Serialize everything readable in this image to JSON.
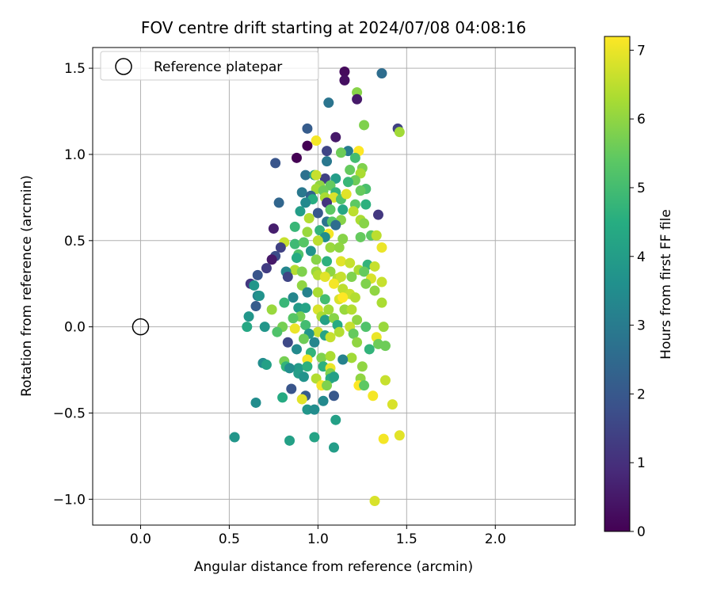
{
  "chart_data": {
    "type": "scatter",
    "title": "FOV centre drift starting at 2024/07/08 04:08:16",
    "xlabel": "Angular distance from reference (arcmin)",
    "ylabel": "Rotation from reference (arcmin)",
    "xlim": [
      -0.27,
      2.45
    ],
    "ylim": [
      -1.15,
      1.62
    ],
    "xticks": [
      0.0,
      0.5,
      1.0,
      1.5,
      2.0
    ],
    "xtick_labels": [
      "0.0",
      "0.5",
      "1.0",
      "1.5",
      "2.0"
    ],
    "yticks": [
      -1.0,
      -0.5,
      0.0,
      0.5,
      1.0,
      1.5
    ],
    "ytick_labels": [
      "−1.0",
      "−0.5",
      "0.0",
      "0.5",
      "1.0",
      "1.5"
    ],
    "grid": true,
    "legend": {
      "placement": "top-left",
      "entries": [
        {
          "label": "Reference platepar",
          "marker": "open-circle"
        }
      ]
    },
    "reference_point": {
      "x": 0.0,
      "y": 0.0
    },
    "colorbar": {
      "label": "Hours from first FF file",
      "colormap": "viridis",
      "range": [
        0,
        7.2
      ],
      "ticks": [
        0,
        1,
        2,
        3,
        4,
        5,
        6,
        7
      ],
      "tick_labels": [
        "0",
        "1",
        "2",
        "3",
        "4",
        "5",
        "6",
        "7"
      ]
    },
    "points": [
      [
        1.15,
        1.48,
        0.2
      ],
      [
        1.15,
        1.43,
        0.3
      ],
      [
        1.36,
        1.47,
        2.6
      ],
      [
        1.22,
        1.36,
        5.9
      ],
      [
        1.22,
        1.32,
        0.5
      ],
      [
        1.06,
        1.3,
        2.8
      ],
      [
        1.26,
        1.17,
        5.8
      ],
      [
        0.94,
        1.15,
        2.1
      ],
      [
        1.45,
        1.15,
        1.4
      ],
      [
        1.46,
        1.13,
        6.2
      ],
      [
        1.1,
        1.1,
        0.5
      ],
      [
        0.99,
        1.08,
        7.1
      ],
      [
        0.94,
        1.05,
        0.0
      ],
      [
        1.05,
        1.02,
        1.5
      ],
      [
        1.17,
        1.02,
        3.0
      ],
      [
        1.23,
        1.02,
        7.2
      ],
      [
        1.13,
        1.01,
        5.6
      ],
      [
        0.88,
        0.98,
        0.0
      ],
      [
        1.21,
        0.98,
        5.0
      ],
      [
        1.05,
        0.96,
        2.9
      ],
      [
        0.76,
        0.95,
        1.9
      ],
      [
        1.25,
        0.92,
        5.8
      ],
      [
        1.18,
        0.91,
        5.5
      ],
      [
        1.24,
        0.89,
        6.3
      ],
      [
        0.93,
        0.88,
        2.7
      ],
      [
        0.98,
        0.88,
        4.2
      ],
      [
        1.04,
        0.86,
        1.4
      ],
      [
        0.99,
        0.88,
        6.6
      ],
      [
        1.1,
        0.86,
        4.0
      ],
      [
        1.21,
        0.85,
        5.6
      ],
      [
        1.17,
        0.84,
        4.8
      ],
      [
        1.01,
        0.82,
        6.0
      ],
      [
        1.07,
        0.82,
        5.5
      ],
      [
        0.99,
        0.8,
        6.2
      ],
      [
        1.27,
        0.8,
        5.1
      ],
      [
        1.03,
        0.79,
        5.6
      ],
      [
        1.24,
        0.79,
        5.5
      ],
      [
        0.91,
        0.78,
        2.9
      ],
      [
        1.1,
        0.78,
        4.7
      ],
      [
        0.96,
        0.76,
        2.3
      ],
      [
        1.04,
        0.75,
        6.3
      ],
      [
        1.09,
        0.75,
        6.8
      ],
      [
        1.13,
        0.74,
        5.2
      ],
      [
        1.16,
        0.77,
        6.9
      ],
      [
        0.97,
        0.74,
        4.5
      ],
      [
        0.78,
        0.72,
        2.4
      ],
      [
        1.05,
        0.72,
        1.1
      ],
      [
        0.93,
        0.72,
        3.4
      ],
      [
        1.21,
        0.71,
        5.4
      ],
      [
        1.27,
        0.71,
        4.6
      ],
      [
        1.07,
        0.68,
        5.4
      ],
      [
        1.14,
        0.68,
        4.3
      ],
      [
        1.2,
        0.67,
        6.5
      ],
      [
        0.9,
        0.67,
        4.0
      ],
      [
        1.34,
        0.65,
        1.2
      ],
      [
        1.0,
        0.66,
        2.0
      ],
      [
        1.13,
        0.62,
        5.9
      ],
      [
        1.05,
        0.61,
        2.8
      ],
      [
        1.08,
        0.61,
        5.3
      ],
      [
        1.24,
        0.62,
        6.3
      ],
      [
        0.95,
        0.63,
        6.4
      ],
      [
        0.87,
        0.58,
        4.8
      ],
      [
        1.1,
        0.59,
        2.6
      ],
      [
        1.26,
        0.6,
        5.9
      ],
      [
        1.01,
        0.56,
        4.7
      ],
      [
        0.75,
        0.57,
        0.6
      ],
      [
        0.94,
        0.55,
        6.1
      ],
      [
        1.06,
        0.54,
        7.1
      ],
      [
        1.04,
        0.52,
        3.5
      ],
      [
        1.24,
        0.52,
        5.5
      ],
      [
        1.3,
        0.53,
        5.4
      ],
      [
        1.33,
        0.53,
        6.5
      ],
      [
        1.0,
        0.5,
        6.5
      ],
      [
        1.14,
        0.51,
        5.9
      ],
      [
        0.81,
        0.49,
        6.6
      ],
      [
        0.87,
        0.48,
        4.9
      ],
      [
        0.92,
        0.49,
        5.3
      ],
      [
        0.79,
        0.46,
        1.4
      ],
      [
        1.07,
        0.46,
        6.1
      ],
      [
        1.12,
        0.46,
        6.0
      ],
      [
        1.36,
        0.46,
        7.0
      ],
      [
        0.96,
        0.44,
        3.7
      ],
      [
        0.89,
        0.42,
        5.2
      ],
      [
        0.76,
        0.41,
        1.7
      ],
      [
        0.74,
        0.39,
        0.5
      ],
      [
        0.88,
        0.4,
        4.4
      ],
      [
        0.99,
        0.39,
        5.9
      ],
      [
        1.13,
        0.38,
        6.9
      ],
      [
        1.05,
        0.38,
        4.6
      ],
      [
        1.18,
        0.37,
        6.6
      ],
      [
        1.28,
        0.36,
        4.7
      ],
      [
        1.32,
        0.35,
        6.6
      ],
      [
        0.71,
        0.34,
        1.3
      ],
      [
        0.87,
        0.33,
        6.4
      ],
      [
        0.91,
        0.32,
        5.8
      ],
      [
        0.99,
        0.32,
        6.1
      ],
      [
        1.07,
        0.32,
        6.0
      ],
      [
        1.23,
        0.33,
        6.3
      ],
      [
        1.26,
        0.32,
        5.5
      ],
      [
        0.82,
        0.32,
        3.3
      ],
      [
        0.83,
        0.29,
        1.5
      ],
      [
        1.0,
        0.3,
        6.4
      ],
      [
        1.04,
        0.29,
        6.9
      ],
      [
        1.11,
        0.28,
        6.4
      ],
      [
        1.13,
        0.29,
        6.6
      ],
      [
        1.19,
        0.29,
        5.8
      ],
      [
        1.3,
        0.28,
        6.8
      ],
      [
        0.66,
        0.3,
        1.9
      ],
      [
        0.62,
        0.25,
        1.2
      ],
      [
        0.64,
        0.24,
        3.8
      ],
      [
        0.91,
        0.24,
        6.0
      ],
      [
        1.09,
        0.25,
        7.1
      ],
      [
        1.27,
        0.25,
        5.8
      ],
      [
        1.36,
        0.26,
        6.6
      ],
      [
        0.94,
        0.2,
        3.2
      ],
      [
        1.0,
        0.2,
        6.3
      ],
      [
        1.14,
        0.22,
        6.5
      ],
      [
        1.18,
        0.19,
        6.6
      ],
      [
        1.32,
        0.21,
        6.0
      ],
      [
        0.66,
        0.18,
        3.2
      ],
      [
        0.67,
        0.18,
        3.7
      ],
      [
        0.86,
        0.17,
        3.3
      ],
      [
        1.04,
        0.16,
        5.0
      ],
      [
        1.12,
        0.16,
        6.8
      ],
      [
        1.21,
        0.17,
        6.4
      ],
      [
        1.14,
        0.17,
        7.2
      ],
      [
        1.36,
        0.14,
        6.3
      ],
      [
        0.65,
        0.12,
        2.1
      ],
      [
        0.81,
        0.14,
        4.8
      ],
      [
        0.89,
        0.11,
        3.9
      ],
      [
        0.93,
        0.11,
        4.2
      ],
      [
        1.0,
        0.1,
        6.8
      ],
      [
        1.06,
        0.1,
        6.2
      ],
      [
        1.15,
        0.1,
        6.1
      ],
      [
        1.19,
        0.1,
        6.4
      ],
      [
        0.74,
        0.1,
        6.1
      ],
      [
        0.9,
        0.06,
        5.7
      ],
      [
        1.02,
        0.06,
        6.3
      ],
      [
        0.61,
        0.06,
        3.8
      ],
      [
        1.04,
        0.04,
        4.1
      ],
      [
        1.09,
        0.05,
        5.9
      ],
      [
        0.86,
        0.05,
        5.3
      ],
      [
        1.22,
        0.04,
        6.0
      ],
      [
        0.93,
        0.01,
        5.0
      ],
      [
        1.11,
        0.01,
        4.4
      ],
      [
        1.18,
        0.0,
        6.6
      ],
      [
        1.27,
        0.0,
        5.2
      ],
      [
        1.37,
        0.0,
        6.1
      ],
      [
        0.6,
        0.0,
        4.3
      ],
      [
        0.7,
        0.0,
        3.8
      ],
      [
        0.8,
        0.0,
        5.7
      ],
      [
        0.87,
        -0.01,
        7.0
      ],
      [
        0.77,
        -0.03,
        5.2
      ],
      [
        1.0,
        -0.03,
        6.6
      ],
      [
        1.12,
        -0.03,
        6.4
      ],
      [
        1.2,
        -0.04,
        5.5
      ],
      [
        0.95,
        -0.04,
        3.8
      ],
      [
        1.04,
        -0.05,
        4.2
      ],
      [
        1.07,
        -0.06,
        6.6
      ],
      [
        1.33,
        -0.06,
        7.0
      ],
      [
        0.92,
        -0.07,
        5.6
      ],
      [
        0.98,
        -0.09,
        3.3
      ],
      [
        1.22,
        -0.09,
        6.0
      ],
      [
        1.38,
        -0.11,
        5.6
      ],
      [
        1.34,
        -0.1,
        5.6
      ],
      [
        0.83,
        -0.09,
        1.6
      ],
      [
        0.88,
        -0.13,
        3.4
      ],
      [
        1.29,
        -0.13,
        4.7
      ],
      [
        0.96,
        -0.15,
        4.7
      ],
      [
        1.19,
        -0.18,
        6.2
      ],
      [
        1.02,
        -0.18,
        5.8
      ],
      [
        1.07,
        -0.17,
        6.3
      ],
      [
        0.94,
        -0.19,
        7.1
      ],
      [
        1.14,
        -0.19,
        3.2
      ],
      [
        0.69,
        -0.21,
        3.5
      ],
      [
        0.81,
        -0.2,
        5.7
      ],
      [
        0.71,
        -0.22,
        4.1
      ],
      [
        0.82,
        -0.23,
        4.7
      ],
      [
        0.89,
        -0.24,
        3.9
      ],
      [
        0.94,
        -0.23,
        4.6
      ],
      [
        1.03,
        -0.23,
        4.6
      ],
      [
        1.07,
        -0.24,
        7.0
      ],
      [
        1.25,
        -0.23,
        6.0
      ],
      [
        0.84,
        -0.24,
        3.5
      ],
      [
        0.89,
        -0.27,
        4.0
      ],
      [
        1.07,
        -0.27,
        5.8
      ],
      [
        0.92,
        -0.29,
        3.7
      ],
      [
        1.07,
        -0.3,
        4.4
      ],
      [
        1.24,
        -0.3,
        6.0
      ],
      [
        0.99,
        -0.3,
        6.4
      ],
      [
        1.09,
        -0.29,
        4.1
      ],
      [
        1.38,
        -0.31,
        6.6
      ],
      [
        1.02,
        -0.34,
        7.1
      ],
      [
        1.05,
        -0.34,
        5.8
      ],
      [
        1.23,
        -0.34,
        7.2
      ],
      [
        1.26,
        -0.34,
        5.4
      ],
      [
        0.85,
        -0.36,
        1.9
      ],
      [
        1.09,
        -0.4,
        2.0
      ],
      [
        1.31,
        -0.4,
        7.1
      ],
      [
        0.8,
        -0.41,
        4.4
      ],
      [
        0.93,
        -0.4,
        2.1
      ],
      [
        0.91,
        -0.42,
        6.9
      ],
      [
        1.03,
        -0.43,
        3.4
      ],
      [
        1.42,
        -0.45,
        6.8
      ],
      [
        0.65,
        -0.44,
        3.5
      ],
      [
        0.94,
        -0.48,
        3.8
      ],
      [
        0.98,
        -0.48,
        3.5
      ],
      [
        1.1,
        -0.54,
        4.1
      ],
      [
        0.53,
        -0.64,
        3.8
      ],
      [
        0.84,
        -0.66,
        4.1
      ],
      [
        0.98,
        -0.64,
        4.2
      ],
      [
        1.37,
        -0.65,
        7.1
      ],
      [
        1.46,
        -0.63,
        6.9
      ],
      [
        1.09,
        -0.7,
        4.0
      ],
      [
        1.32,
        -1.01,
        6.8
      ]
    ]
  }
}
